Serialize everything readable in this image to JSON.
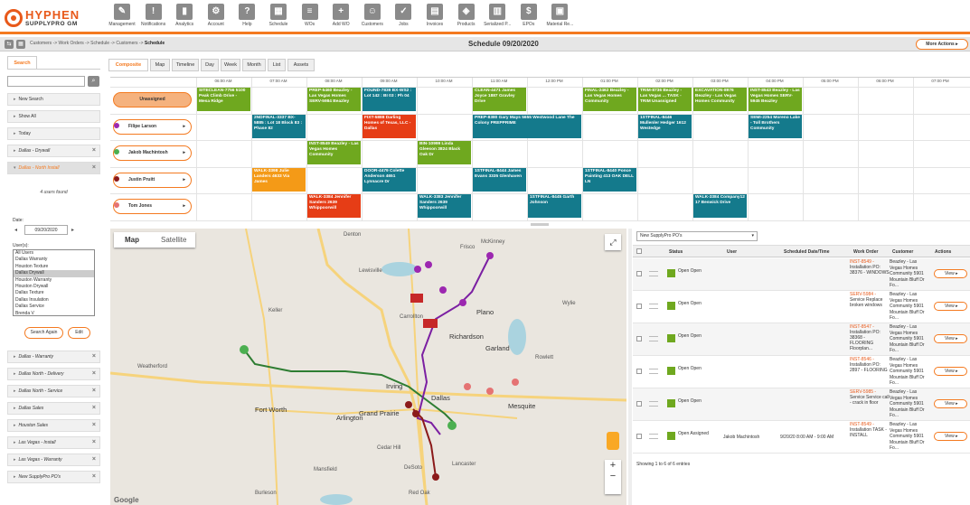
{
  "brand": {
    "name_line1": "HYPHEN",
    "name_line2": "SUPPLYPRO GM"
  },
  "nav": [
    {
      "label": "Management",
      "icon": "wrench-icon",
      "glyph": "✎"
    },
    {
      "label": "Notifications",
      "icon": "alert-icon",
      "glyph": "!"
    },
    {
      "label": "Analytics",
      "icon": "bar-chart-icon",
      "glyph": "▮"
    },
    {
      "label": "Account",
      "icon": "settings-icon",
      "glyph": "⚙"
    },
    {
      "label": "Help",
      "icon": "help-icon",
      "glyph": "?"
    },
    {
      "label": "Schedule",
      "icon": "calendar-icon",
      "glyph": "▦"
    },
    {
      "label": "WOs",
      "icon": "work-order-icon",
      "glyph": "≡"
    },
    {
      "label": "Add WO",
      "icon": "add-work-order-icon",
      "glyph": "+"
    },
    {
      "label": "Customers",
      "icon": "customers-icon",
      "glyph": "☺"
    },
    {
      "label": "Jobs",
      "icon": "jobs-icon",
      "glyph": "✓"
    },
    {
      "label": "Invoices",
      "icon": "invoices-icon",
      "glyph": "▤"
    },
    {
      "label": "Products",
      "icon": "products-icon",
      "glyph": "◈"
    },
    {
      "label": "Serialized P...",
      "icon": "serialized-products-icon",
      "glyph": "▥"
    },
    {
      "label": "EPOs",
      "icon": "epo-icon",
      "glyph": "$"
    },
    {
      "label": "Material Re...",
      "icon": "material-request-icon",
      "glyph": "▣"
    }
  ],
  "breadcrumb": {
    "path": "Customers -> Work Orders -> Schedule -> Customers -> ",
    "current": "Schedule"
  },
  "schedule_title": "Schedule  09/20/2020",
  "more_actions": "More Actions  ▸",
  "sidebar": {
    "tab": "Search",
    "search_placeholder": "",
    "items_top": [
      "New Search",
      "Show All",
      "Today",
      "Dallas - Drywall"
    ],
    "active_item": "Dallas - North Install",
    "users_found": "4 users found",
    "date_label": "Date:",
    "date_value": "09/20/2020",
    "users_label": "User(s):",
    "users": [
      "All Users",
      "Dallas Warranty",
      "Houston Texture",
      "Dallas Drywall",
      "Houston Warranty",
      "Houston Drywall",
      "Dallas Texture",
      "Dallas Insulation",
      "Dallas Service",
      "Brenda V"
    ],
    "selected_user": "Dallas Drywall",
    "search_again": "Search Again",
    "edit": "Edit",
    "items_bottom": [
      "Dallas - Warranty",
      "Dallas North - Delivery",
      "Dallas North - Service",
      "Dallas Sales",
      "Houston Sales",
      "Las Vegas - Install",
      "Las Vegas - Warranty",
      "New SupplyPro PO's"
    ]
  },
  "view_tabs": [
    "Composite",
    "Map",
    "Timeline",
    "Day",
    "Week",
    "Month",
    "List",
    "Assets"
  ],
  "active_view_tab": "Composite",
  "time_headers": [
    "06:00 AM",
    "07:00 AM",
    "08:00 AM",
    "09:00 AM",
    "10:00 AM",
    "11:00 AM",
    "12:00 PM",
    "01:00 PM",
    "02:00 PM",
    "03:00 PM",
    "04:00 PM",
    "05:00 PM",
    "06:00 PM",
    "07:00 PM"
  ],
  "resources": [
    {
      "name": "Unassigned",
      "pin": ""
    },
    {
      "name": "Filipe Larson",
      "pin": "#9c27b0"
    },
    {
      "name": "Jakob Machintosh",
      "pin": "#4caf50"
    },
    {
      "name": "Justin Pruitt",
      "pin": "#8b1a1a"
    },
    {
      "name": "Tom Jones",
      "pin": "#e57373"
    }
  ],
  "events": [
    {
      "row": 0,
      "col": 0,
      "span": 1,
      "color": "green",
      "text": "SITECLEAN-7756 5100 Peak Climb Drive - Mesa Ridge"
    },
    {
      "row": 0,
      "col": 2,
      "span": 1,
      "color": "green",
      "text": "PREP-5460 Beazley - Las Vegas Homes SERV-5984 Beazley"
    },
    {
      "row": 0,
      "col": 3,
      "span": 1,
      "color": "teal",
      "text": "FOUND-7839 BX-WS2 : Lot 142 : BI 03 : Ph 04"
    },
    {
      "row": 0,
      "col": 5,
      "span": 1,
      "color": "green",
      "text": "CLEAN-4471 James Joyce 1887 Gravley Drive"
    },
    {
      "row": 0,
      "col": 7,
      "span": 1,
      "color": "green",
      "text": "FINAL-2462 Beazley - Las Vegas Homes Community"
    },
    {
      "row": 0,
      "col": 8,
      "span": 1,
      "color": "green",
      "text": "TRIM-8736 Beazley - Las Vegas ... TASK - TRIM Unassigned"
    },
    {
      "row": 0,
      "col": 9,
      "span": 1,
      "color": "green",
      "text": "EXCAVATION-8976 Beazley - Las Vegas Homes Community"
    },
    {
      "row": 0,
      "col": 10,
      "span": 1,
      "color": "green",
      "text": "INST-8543 Beazley - Las Vegas Homes SERV-5945 Beazley"
    },
    {
      "row": 1,
      "col": 1,
      "span": 1,
      "color": "teal",
      "text": "2NDFINAL-3337 BX-5885 : Lot 18 Block 83 : Phase 82"
    },
    {
      "row": 1,
      "col": 3,
      "span": 1,
      "color": "red",
      "text": "FIXT-5888 Darling Homes of Texas, LLC - Dallas"
    },
    {
      "row": 1,
      "col": 5,
      "span": 2,
      "color": "teal",
      "text": "PREP-8380 Gary Mays 5655 Westwood Lane The Colony PREPPRIME"
    },
    {
      "row": 1,
      "col": 8,
      "span": 1,
      "color": "teal",
      "text": "1STFINAL-8446 Mullenler Hedger 1612 Westedge"
    },
    {
      "row": 1,
      "col": 10,
      "span": 1,
      "color": "teal",
      "text": "SEMI-2254 Moreno Lake - Toll Brothers Community"
    },
    {
      "row": 2,
      "col": 2,
      "span": 1,
      "color": "green",
      "text": "INST-8549 Beazley - Las Vegas Homes Community"
    },
    {
      "row": 2,
      "col": 4,
      "span": 1,
      "color": "green",
      "text": "BIN-10999 Linda Gleeson 3824 Black Oak Dr"
    },
    {
      "row": 3,
      "col": 1,
      "span": 1,
      "color": "orange",
      "text": "WALK-3398 Julie Landers 4633 Via James"
    },
    {
      "row": 3,
      "col": 3,
      "span": 1,
      "color": "teal",
      "text": "DOOR-4479 Colette Anderson 4651 Lynnacre Dr"
    },
    {
      "row": 3,
      "col": 5,
      "span": 1,
      "color": "teal",
      "text": "1STFINAL-8444 James Evans 3335 Glenhaven"
    },
    {
      "row": 3,
      "col": 7,
      "span": 1,
      "color": "teal",
      "text": "1STFINAL-8440 Ponce Painting 413 OAK DELL LN"
    },
    {
      "row": 4,
      "col": 2,
      "span": 1,
      "color": "red",
      "text": "WALK-3384 Jennifer Sanders 2639 Whippoorwill"
    },
    {
      "row": 4,
      "col": 4,
      "span": 1,
      "color": "teal",
      "text": "WALK-3383 Jennifer Sanders 2639 Whippoorwill"
    },
    {
      "row": 4,
      "col": 6,
      "span": 1,
      "color": "teal",
      "text": "1STFINAL-8445 Garth Johnson"
    },
    {
      "row": 4,
      "col": 9,
      "span": 1,
      "color": "teal",
      "text": "WALK-3384 Company12 17 Beswick Drive"
    }
  ],
  "map": {
    "tab_map": "Map",
    "tab_satellite": "Satellite",
    "labels": [
      "Denton",
      "Frisco",
      "McKinney",
      "Lewisville",
      "Plano",
      "Richardson",
      "Garland",
      "Irving",
      "Dallas",
      "Mesquite",
      "Fort Worth",
      "Arlington",
      "Grand Prairie",
      "Mansfield",
      "Cedar Hill",
      "DeSoto",
      "Lancaster",
      "Red Oak",
      "Weatherford",
      "Wylie",
      "Rowlett",
      "Carrollton",
      "Keller",
      "Burleson"
    ],
    "google": "Google"
  },
  "po_filter": "New SupplyPro PO's",
  "table_headers": [
    "Status",
    "User",
    "Scheduled Date/Time",
    "Work Order",
    "Customer",
    "Actions"
  ],
  "rows": [
    {
      "status": "Open Open",
      "user": "",
      "date": "",
      "code": "INST-8549 -",
      "desc": "Installation PO: 38376 - WINDOWS",
      "customer": "Beazley - Las Vegas Homes Community 5901 Mountain Bluff Dr  Fo...",
      "view": "View"
    },
    {
      "status": "Open Open",
      "user": "",
      "date": "",
      "code": "SERV-5984 -",
      "desc": "Service Replace broken windows",
      "customer": "Beazley - Las Vegas Homes Community 5901 Mountain Bluff Dr  Fo...",
      "view": "View"
    },
    {
      "status": "Open Open",
      "user": "",
      "date": "",
      "code": "INST-8547 -",
      "desc": "Installation PO: 38368 - FLOORING Floorplan...",
      "customer": "Beazley - Las Vegas Homes Community 5901 Mountain Bluff Dr  Fo...",
      "view": "View"
    },
    {
      "status": "Open Open",
      "user": "",
      "date": "",
      "code": "INST-8546 -",
      "desc": "Installation PO: 2897 - FLOORING",
      "customer": "Beazley - Las Vegas Homes Community 5901 Mountain Bluff Dr  Fo...",
      "view": "View"
    },
    {
      "status": "Open Open",
      "user": "",
      "date": "",
      "code": "SERV-5985 -",
      "desc": "Service Service call - crack in floor",
      "customer": "Beazley - Las Vegas Homes Community 5901 Mountain Bluff Dr  Fo...",
      "view": "View"
    },
    {
      "status": "Open Assigned",
      "user": "Jakob Machintosh",
      "date": "9/20/20 8:00 AM - 9:00 AM",
      "code": "INST-8549 -",
      "desc": "Installation TASK - INSTALL",
      "customer": "Beazley - Las Vegas Homes Community 5901 Mountain Bluff Dr  Fo...",
      "view": "View"
    }
  ],
  "showing": "Showing 1 to 6 of 6 entries"
}
